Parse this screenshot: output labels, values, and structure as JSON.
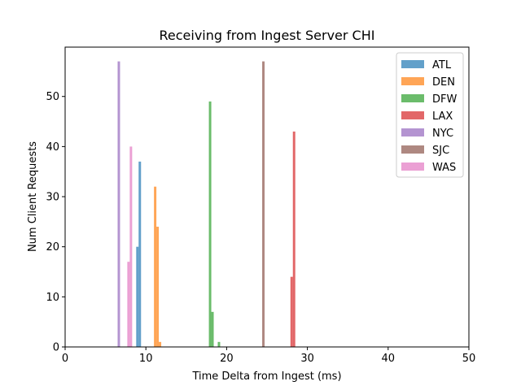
{
  "chart_data": {
    "type": "bar",
    "title": "Receiving from Ingest Server CHI",
    "xlabel": "Time Delta from Ingest (ms)",
    "ylabel": "Num Client Requests",
    "xlim": [
      0,
      50
    ],
    "ylim": [
      0,
      59.85
    ],
    "xticks": [
      0,
      10,
      20,
      30,
      40,
      50
    ],
    "yticks": [
      0,
      10,
      20,
      30,
      40,
      50
    ],
    "grid": false,
    "legend_position": "top-right",
    "bar_alpha": 0.7,
    "series": [
      {
        "name": "ATL",
        "color": "#1f77b4",
        "bins": [
          {
            "x0": 8.8,
            "x1": 9.1,
            "count": 20
          },
          {
            "x0": 9.1,
            "x1": 9.4,
            "count": 37
          }
        ]
      },
      {
        "name": "DEN",
        "color": "#ff7f0e",
        "bins": [
          {
            "x0": 11.0,
            "x1": 11.3,
            "count": 32
          },
          {
            "x0": 11.3,
            "x1": 11.6,
            "count": 24
          },
          {
            "x0": 11.6,
            "x1": 11.9,
            "count": 1
          }
        ]
      },
      {
        "name": "DFW",
        "color": "#2ca02c",
        "bins": [
          {
            "x0": 17.8,
            "x1": 18.1,
            "count": 49
          },
          {
            "x0": 18.1,
            "x1": 18.4,
            "count": 7
          },
          {
            "x0": 18.9,
            "x1": 19.2,
            "count": 1
          }
        ]
      },
      {
        "name": "LAX",
        "color": "#d62728",
        "bins": [
          {
            "x0": 27.9,
            "x1": 28.2,
            "count": 14
          },
          {
            "x0": 28.2,
            "x1": 28.5,
            "count": 43
          }
        ]
      },
      {
        "name": "NYC",
        "color": "#9467bd",
        "bins": [
          {
            "x0": 6.5,
            "x1": 6.8,
            "count": 57
          }
        ]
      },
      {
        "name": "SJC",
        "color": "#8c564b",
        "bins": [
          {
            "x0": 24.4,
            "x1": 24.7,
            "count": 57
          }
        ]
      },
      {
        "name": "WAS",
        "color": "#e377c2",
        "bins": [
          {
            "x0": 7.7,
            "x1": 8.0,
            "count": 17
          },
          {
            "x0": 8.0,
            "x1": 8.3,
            "count": 40
          }
        ]
      }
    ]
  }
}
